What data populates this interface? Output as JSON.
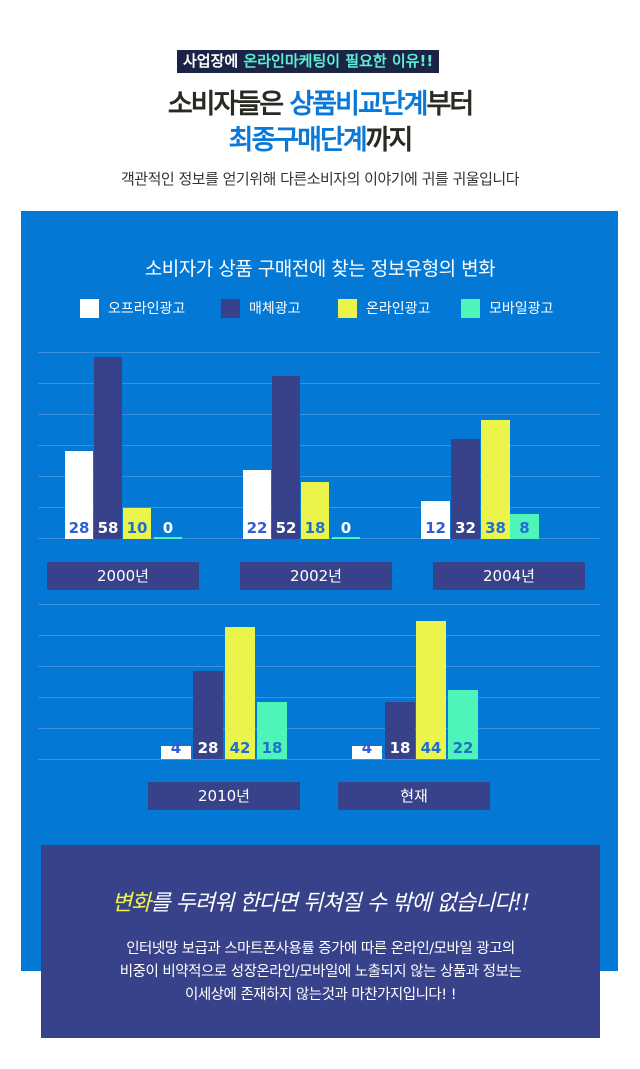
{
  "header": {
    "badge_plain": "사업장에 ",
    "badge_highlight": "온라인마케팅이 필요한 이유!!",
    "title1_a": "소비자들은 ",
    "title1_b": "상품비교단계",
    "title1_c": "부터",
    "title2_a": "최종구매단계",
    "title2_b": "까지",
    "subtitle": "객관적인 정보를 얻기위해 다른소비자의 이야기에 귀를 귀울입니다"
  },
  "colors": {
    "panel": "#0378d4",
    "navy": "#38428a",
    "white": "#ffffff",
    "yellow": "#ebf44a",
    "mint": "#4ff5b8"
  },
  "chart_data": {
    "type": "bar",
    "title": "소비자가 상품 구매전에 찾는 정보유형의 변화",
    "legend": [
      "오프라인광고",
      "매체광고",
      "온라인광고",
      "모바일광고"
    ],
    "legend_placement": "top",
    "categories": [
      "2000년",
      "2002년",
      "2004년",
      "2010년",
      "현재"
    ],
    "series": [
      {
        "name": "오프라인광고",
        "values": [
          28,
          22,
          12,
          4,
          4
        ]
      },
      {
        "name": "매체광고",
        "values": [
          58,
          52,
          32,
          28,
          18
        ]
      },
      {
        "name": "온라인광고",
        "values": [
          10,
          18,
          38,
          42,
          44
        ]
      },
      {
        "name": "모바일광고",
        "values": [
          0,
          0,
          8,
          18,
          22
        ]
      }
    ],
    "grid": true
  },
  "footer": {
    "slogan_hl": "변화",
    "slogan_rest": "를 두려워 한다면 뒤쳐질 수 밖에 없습니다!!",
    "line1": "인터넷망 보급과 스마트폰사용률 증가에 따른 온라인/모바일 광고의",
    "line2": "비중이 비약적으로 성장온라인/모바일에 노출되지 않는 상품과 정보는",
    "line3": "이세상에 존재하지 않는것과 마찬가지입니다! !"
  }
}
